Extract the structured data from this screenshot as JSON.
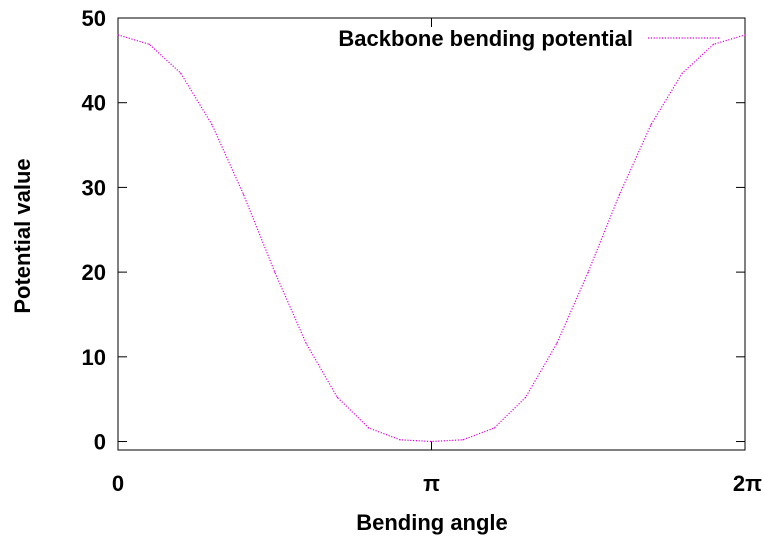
{
  "chart_data": {
    "type": "line",
    "xlabel": "Bending angle",
    "ylabel": "Potential value",
    "xlim": [
      0,
      6.283185
    ],
    "ylim": [
      -1,
      50
    ],
    "x_ticks": [
      {
        "value": 0,
        "label": "0"
      },
      {
        "value": 3.141593,
        "label": "π"
      },
      {
        "value": 6.283185,
        "label": "2π"
      }
    ],
    "y_ticks": [
      {
        "value": 0,
        "label": "0"
      },
      {
        "value": 10,
        "label": "10"
      },
      {
        "value": 20,
        "label": "20"
      },
      {
        "value": 30,
        "label": "30"
      },
      {
        "value": 40,
        "label": "40"
      },
      {
        "value": 50,
        "label": "50"
      }
    ],
    "grid": false,
    "legend_position": "top-right",
    "series": [
      {
        "name": "Backbone bending potential",
        "color": "#e000e0",
        "line_style": "dotted",
        "x": [
          0,
          0.314,
          0.628,
          0.942,
          1.257,
          1.571,
          1.885,
          2.199,
          2.513,
          2.827,
          3.142,
          3.456,
          3.77,
          4.084,
          4.398,
          4.712,
          5.027,
          5.341,
          5.655,
          5.969,
          6.283
        ],
        "y": [
          48,
          46.9,
          43.5,
          37.4,
          29.2,
          20.0,
          11.6,
          5.2,
          1.6,
          0.2,
          0,
          0.2,
          1.6,
          5.2,
          11.6,
          20.0,
          29.2,
          37.4,
          43.5,
          46.9,
          48
        ]
      }
    ]
  }
}
